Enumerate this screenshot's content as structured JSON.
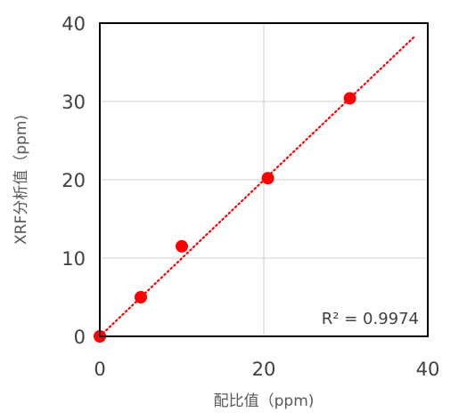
{
  "chart_data": {
    "type": "scatter",
    "xlabel": "配比值（ppm)",
    "ylabel": "XRF分析值（ppm)",
    "xlim": [
      0,
      40
    ],
    "ylim": [
      0,
      40
    ],
    "x_ticks": [
      "0",
      "20",
      "40"
    ],
    "y_ticks": [
      "0",
      "10",
      "20",
      "30",
      "40"
    ],
    "grid": true,
    "series": [
      {
        "x": [
          0,
          5,
          10,
          20.5,
          30.5
        ],
        "y": [
          0,
          5,
          11.5,
          20.2,
          30.4
        ],
        "color": "#ff0000"
      }
    ],
    "trendline": {
      "style": "dotted",
      "color": "#ff0000",
      "x": [
        0,
        38.5
      ],
      "y": [
        0,
        38.4
      ]
    },
    "annotation": "R² = 0.9974"
  }
}
